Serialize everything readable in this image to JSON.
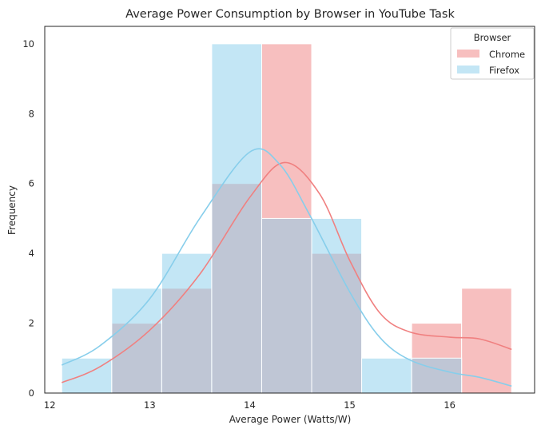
{
  "chart_data": {
    "type": "histogram",
    "title": "Average Power Consumption by Browser in YouTube Task",
    "xlabel": "Average Power (Watts/W)",
    "ylabel": "Frequency",
    "xlim": [
      11.95,
      16.85
    ],
    "ylim": [
      0,
      10.5
    ],
    "xticks": [
      12,
      13,
      14,
      15,
      16
    ],
    "yticks": [
      0,
      2,
      4,
      6,
      8,
      10
    ],
    "bin_edges": [
      12.12,
      12.62,
      13.12,
      13.62,
      14.12,
      14.62,
      15.12,
      15.62,
      16.12,
      16.62
    ],
    "grid": false,
    "legend": {
      "title": "Browser",
      "placement": "top-right"
    },
    "series": [
      {
        "name": "Chrome",
        "color": "#f08080",
        "counts": [
          0,
          2,
          3,
          6,
          10,
          4,
          0,
          2,
          3
        ],
        "kde": [
          [
            12.12,
            0.3
          ],
          [
            12.5,
            0.75
          ],
          [
            13.0,
            1.8
          ],
          [
            13.5,
            3.4
          ],
          [
            14.0,
            5.6
          ],
          [
            14.35,
            6.6
          ],
          [
            14.7,
            5.7
          ],
          [
            15.0,
            3.8
          ],
          [
            15.3,
            2.3
          ],
          [
            15.6,
            1.75
          ],
          [
            16.0,
            1.6
          ],
          [
            16.3,
            1.55
          ],
          [
            16.62,
            1.25
          ]
        ]
      },
      {
        "name": "Firefox",
        "color": "#87ceeb",
        "counts": [
          1,
          3,
          4,
          10,
          5,
          5,
          1,
          1,
          0
        ],
        "kde": [
          [
            12.12,
            0.8
          ],
          [
            12.5,
            1.35
          ],
          [
            13.0,
            2.7
          ],
          [
            13.5,
            5.0
          ],
          [
            14.0,
            6.9
          ],
          [
            14.3,
            6.55
          ],
          [
            14.6,
            5.1
          ],
          [
            15.0,
            2.9
          ],
          [
            15.3,
            1.6
          ],
          [
            15.6,
            0.95
          ],
          [
            16.0,
            0.6
          ],
          [
            16.3,
            0.45
          ],
          [
            16.62,
            0.2
          ]
        ]
      }
    ]
  }
}
